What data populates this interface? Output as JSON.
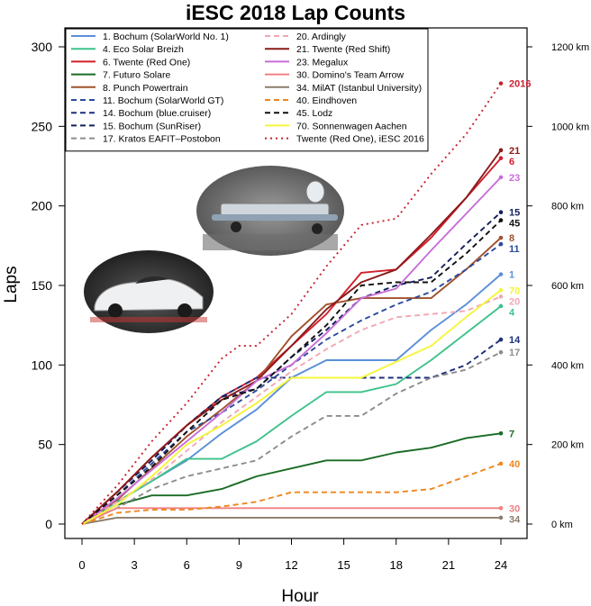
{
  "chart_data": {
    "type": "line",
    "title": "iESC 2018 Lap Counts",
    "xlabel": "Hour",
    "ylabel": "Laps",
    "xlim": [
      0,
      24
    ],
    "ylim": [
      0,
      300
    ],
    "x_ticks": [
      0,
      3,
      6,
      9,
      12,
      15,
      18,
      21,
      24
    ],
    "y_ticks": [
      0,
      50,
      100,
      150,
      200,
      250,
      300
    ],
    "secondary_axis": {
      "label_values_km": [
        0,
        200,
        400,
        600,
        800,
        1000,
        1200
      ],
      "tick_labels": [
        "0 km",
        "200 km",
        "400 km",
        "600 km",
        "800 km",
        "1000 km",
        "1200 km"
      ],
      "at_laps": [
        0,
        50,
        100,
        150,
        200,
        250,
        300
      ]
    },
    "legend_position": "top-left",
    "photo_captions": [
      "solar car on track at night",
      "solar car driving on track"
    ],
    "series": [
      {
        "name": "1. Bochum (SolarWorld No. 1)",
        "end_label": "1",
        "color": "#5b8fd9",
        "dash": "solid",
        "x": [
          0,
          2,
          4,
          6,
          8,
          10,
          12,
          14,
          16,
          18,
          20,
          22,
          24
        ],
        "values": [
          0,
          14,
          27,
          40,
          57,
          72,
          92,
          103,
          103,
          103,
          122,
          138,
          157
        ]
      },
      {
        "name": "4. Eco Solar Breizh",
        "end_label": "4",
        "color": "#3cc28a",
        "dash": "solid",
        "x": [
          0,
          2,
          4,
          6,
          8,
          10,
          12,
          14,
          16,
          18,
          20,
          22,
          24
        ],
        "values": [
          0,
          14,
          27,
          41,
          41,
          52,
          68,
          83,
          83,
          88,
          103,
          120,
          137
        ]
      },
      {
        "name": "6. Twente (Red One)",
        "end_label": "6",
        "color": "#d11f2b",
        "dash": "solid",
        "x": [
          0,
          2,
          4,
          6,
          8,
          10,
          12,
          14,
          16,
          18,
          20,
          22,
          24
        ],
        "values": [
          0,
          20,
          42,
          62,
          80,
          92,
          112,
          132,
          158,
          160,
          180,
          205,
          230
        ]
      },
      {
        "name": "7. Futuro Solare",
        "end_label": "7",
        "color": "#1a6b25",
        "dash": "solid",
        "x": [
          0,
          2,
          4,
          6,
          8,
          10,
          12,
          14,
          16,
          18,
          20,
          22,
          24
        ],
        "values": [
          0,
          12,
          18,
          18,
          22,
          30,
          35,
          40,
          40,
          45,
          48,
          54,
          57
        ]
      },
      {
        "name": "8. Punch Powertrain",
        "end_label": "8",
        "color": "#a0522d",
        "dash": "solid",
        "x": [
          0,
          2,
          4,
          6,
          8,
          10,
          12,
          14,
          16,
          18,
          20,
          22,
          24
        ],
        "values": [
          0,
          15,
          35,
          55,
          72,
          90,
          118,
          138,
          142,
          142,
          142,
          160,
          180
        ]
      },
      {
        "name": "11. Bochum (SolarWorld GT)",
        "end_label": "11",
        "color": "#2b4a9b",
        "dash": "dashed",
        "x": [
          0,
          2,
          4,
          6,
          8,
          10,
          12,
          14,
          16,
          18,
          20,
          22,
          24
        ],
        "values": [
          0,
          18,
          38,
          58,
          70,
          84,
          100,
          116,
          128,
          138,
          146,
          160,
          176
        ]
      },
      {
        "name": "14. Bochum (blue.cruiser)",
        "end_label": "14",
        "color": "#1c2f7a",
        "dash": "dashed",
        "x": [
          0,
          2,
          4,
          6,
          8,
          10,
          12,
          14,
          16,
          18,
          20,
          22,
          24
        ],
        "values": [
          0,
          20,
          40,
          62,
          80,
          92,
          92,
          92,
          92,
          92,
          92,
          100,
          116
        ]
      },
      {
        "name": "15. Bochum (SunRiser)",
        "end_label": "15",
        "color": "#14205c",
        "dash": "dashed",
        "x": [
          0,
          2,
          4,
          6,
          8,
          10,
          12,
          14,
          16,
          18,
          20,
          22,
          24
        ],
        "values": [
          0,
          20,
          40,
          62,
          80,
          85,
          105,
          122,
          142,
          150,
          155,
          176,
          196
        ]
      },
      {
        "name": "17. Kratos EAFIT–Postobon",
        "end_label": "17",
        "color": "#8c8c8c",
        "dash": "dashed",
        "x": [
          0,
          2,
          4,
          6,
          8,
          10,
          12,
          14,
          16,
          18,
          20,
          22,
          24
        ],
        "values": [
          0,
          10,
          22,
          30,
          35,
          40,
          55,
          68,
          68,
          82,
          92,
          97,
          108
        ]
      },
      {
        "name": "20. Ardingly",
        "end_label": "20",
        "color": "#f2a7b3",
        "dash": "dashed",
        "x": [
          0,
          2,
          4,
          6,
          8,
          10,
          12,
          14,
          16,
          18,
          20,
          22,
          24
        ],
        "values": [
          0,
          14,
          28,
          46,
          64,
          80,
          96,
          110,
          122,
          130,
          132,
          134,
          143
        ]
      },
      {
        "name": "21. Twente (Red Shift)",
        "end_label": "21",
        "color": "#8b1a1a",
        "dash": "solid",
        "x": [
          0,
          2,
          4,
          6,
          8,
          10,
          12,
          14,
          16,
          18,
          20,
          22,
          24
        ],
        "values": [
          0,
          20,
          42,
          62,
          78,
          90,
          112,
          135,
          152,
          160,
          182,
          205,
          235
        ]
      },
      {
        "name": "23. Megalux",
        "end_label": "23",
        "color": "#c86dd7",
        "dash": "solid",
        "x": [
          0,
          2,
          4,
          6,
          8,
          10,
          12,
          14,
          16,
          18,
          20,
          22,
          24
        ],
        "values": [
          0,
          16,
          34,
          52,
          70,
          90,
          100,
          120,
          142,
          148,
          172,
          195,
          218
        ]
      },
      {
        "name": "30. Domino's Team Arrow",
        "end_label": "30",
        "color": "#f08080",
        "dash": "solid",
        "x": [
          0,
          2,
          4,
          6,
          8,
          10,
          12,
          14,
          16,
          18,
          20,
          22,
          24
        ],
        "values": [
          0,
          10,
          10,
          10,
          10,
          10,
          10,
          10,
          10,
          10,
          10,
          10,
          10
        ]
      },
      {
        "name": "34. MilAT (Istanbul University)",
        "end_label": "34",
        "color": "#8b7d6b",
        "dash": "solid",
        "x": [
          0,
          2,
          4,
          6,
          8,
          10,
          12,
          14,
          16,
          18,
          20,
          22,
          24
        ],
        "values": [
          0,
          4,
          4,
          4,
          4,
          4,
          4,
          4,
          4,
          4,
          4,
          4,
          4
        ]
      },
      {
        "name": "40. Eindhoven",
        "end_label": "40",
        "color": "#f0861d",
        "dash": "dashed",
        "x": [
          0,
          2,
          4,
          6,
          8,
          10,
          12,
          14,
          16,
          18,
          20,
          22,
          24
        ],
        "values": [
          0,
          7,
          9,
          9,
          11,
          14,
          20,
          20,
          20,
          20,
          22,
          30,
          38
        ]
      },
      {
        "name": "45. Lodz",
        "end_label": "45",
        "color": "#111111",
        "dash": "dashed",
        "x": [
          0,
          2,
          4,
          6,
          8,
          10,
          12,
          14,
          16,
          18,
          20,
          22,
          24
        ],
        "values": [
          0,
          18,
          36,
          58,
          78,
          85,
          105,
          125,
          150,
          152,
          152,
          170,
          191
        ]
      },
      {
        "name": "70. Sonnenwagen Aachen",
        "end_label": "70",
        "color": "#f5f53a",
        "dash": "solid",
        "x": [
          0,
          2,
          4,
          6,
          8,
          10,
          12,
          14,
          16,
          18,
          20,
          22,
          24
        ],
        "values": [
          0,
          12,
          30,
          50,
          62,
          76,
          92,
          92,
          92,
          102,
          112,
          130,
          147
        ]
      },
      {
        "name": "Twente (Red One), iESC 2016",
        "end_label": "2016",
        "color": "#c8202f",
        "dash": "dotted",
        "x": [
          0,
          2,
          4,
          6,
          8,
          9,
          10,
          12,
          14,
          16,
          18,
          20,
          22,
          24
        ],
        "values": [
          0,
          24,
          52,
          76,
          104,
          112,
          112,
          132,
          162,
          188,
          192,
          220,
          245,
          277
        ]
      }
    ]
  }
}
